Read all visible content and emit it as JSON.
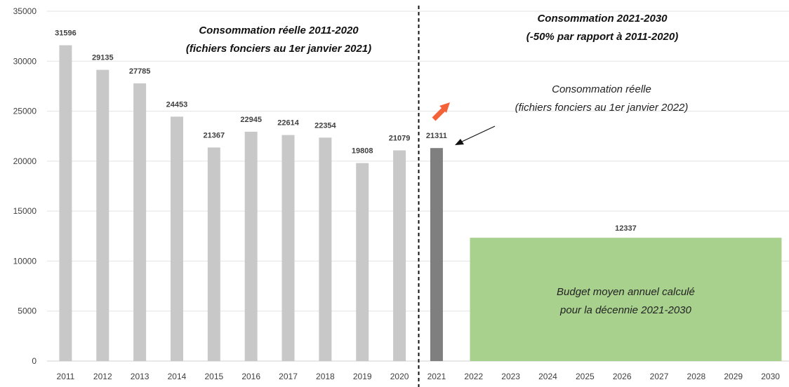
{
  "chart_data": {
    "type": "bar",
    "ylim": [
      0,
      35000
    ],
    "yticks": [
      0,
      5000,
      10000,
      15000,
      20000,
      25000,
      30000,
      35000
    ],
    "grid": true,
    "categories": [
      "2011",
      "2012",
      "2013",
      "2014",
      "2015",
      "2016",
      "2017",
      "2018",
      "2019",
      "2020",
      "2021",
      "2022",
      "2023",
      "2024",
      "2025",
      "2026",
      "2027",
      "2028",
      "2029",
      "2030"
    ],
    "series": [
      {
        "values": [
          31596,
          29135,
          27785,
          24453,
          21367,
          22945,
          22614,
          22354,
          19808,
          21079,
          null,
          null,
          null,
          null,
          null,
          null,
          null,
          null,
          null,
          null
        ],
        "color": "#c8c8c8"
      },
      {
        "values": [
          null,
          null,
          null,
          null,
          null,
          null,
          null,
          null,
          null,
          null,
          21311,
          null,
          null,
          null,
          null,
          null,
          null,
          null,
          null,
          null
        ],
        "color": "#7f7f7f"
      }
    ],
    "budget": {
      "value": 12337,
      "from": "2022",
      "to": "2030",
      "color": "#a9d18e",
      "label_line1": "Budget moyen annuel calculé",
      "label_line2": "pour la décennie 2021-2030"
    },
    "divider_after": "2020",
    "annotations": {
      "left_title_line1": "Consommation réelle 2011-2020",
      "left_title_line2": "(fichiers fonciers au 1er janvier 2021)",
      "right_title_line1": "Consommation 2021-2030",
      "right_title_line2": "(-50% par rapport à 2011-2020)",
      "actual_line1": "Consommation réelle",
      "actual_line2": "(fichiers fonciers au 1er janvier 2022)",
      "trend_arrow_color": "#f4623a"
    }
  }
}
